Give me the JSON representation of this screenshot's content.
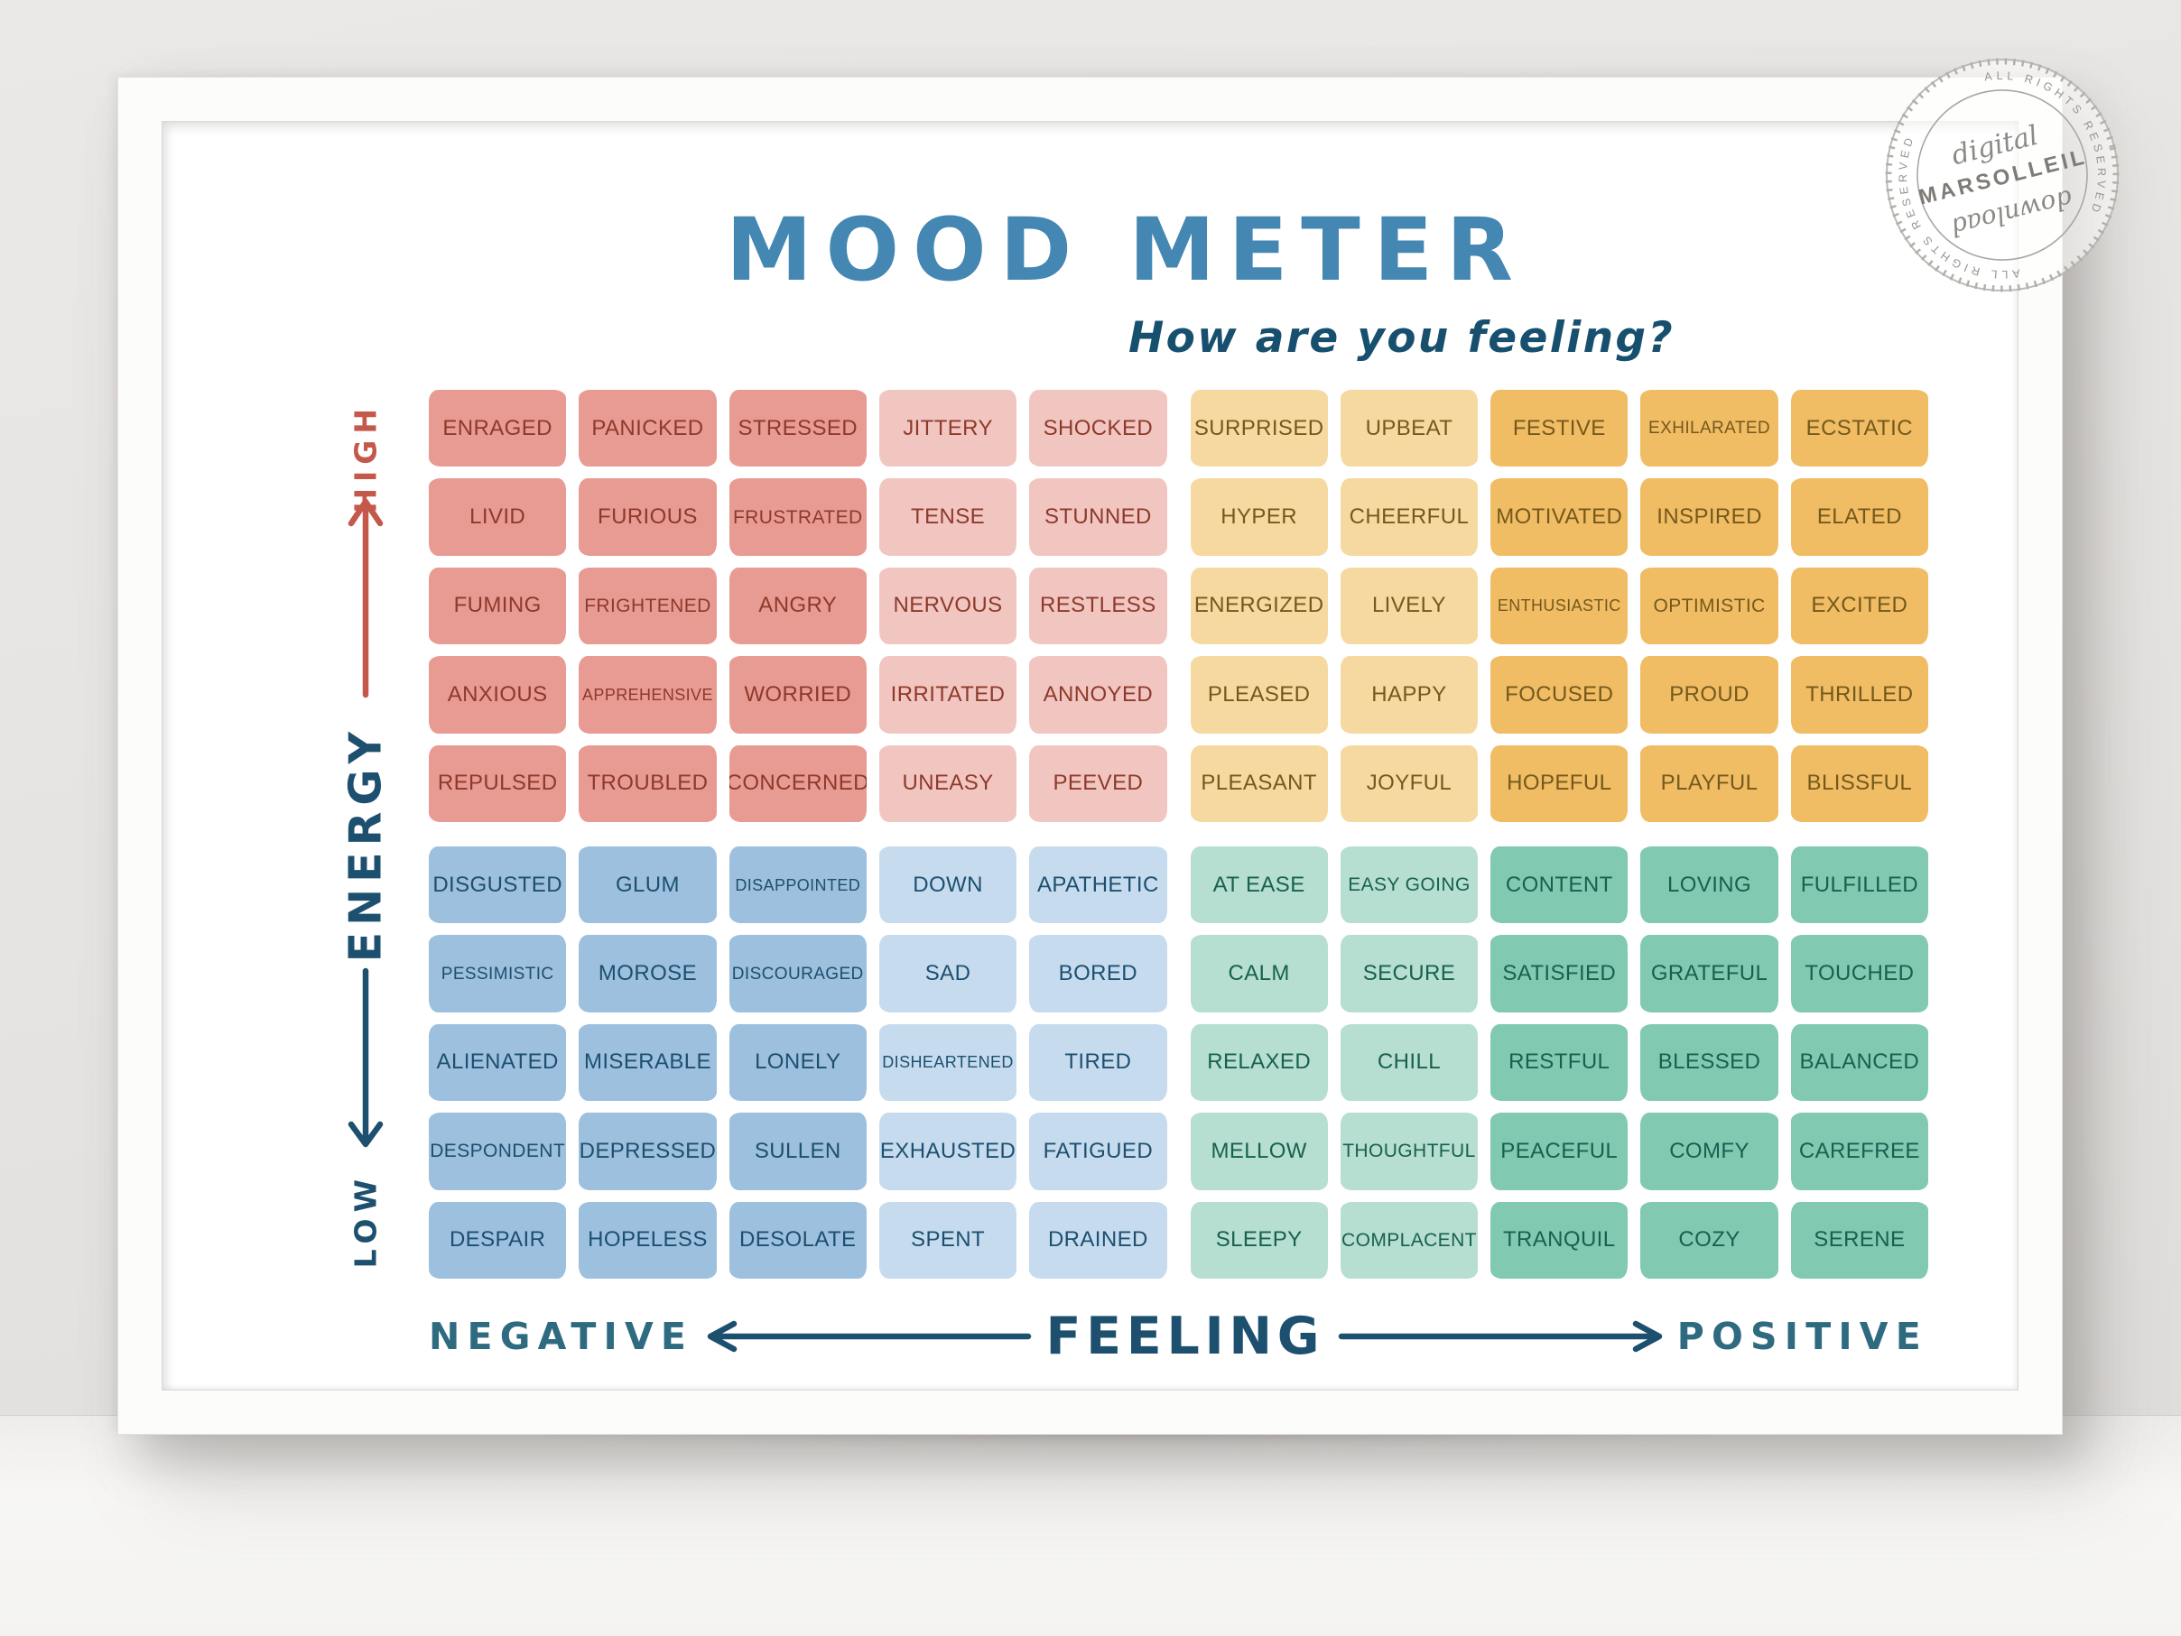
{
  "poster": {
    "title": "MOOD METER",
    "subtitle": "How are you feeling?",
    "axes": {
      "y_label": "ENERGY",
      "y_high": "HIGH",
      "y_low": "LOW",
      "x_label": "FEELING",
      "x_negative": "NEGATIVE",
      "x_positive": "POSITIVE"
    },
    "colors": {
      "title_blue": "#4587b3",
      "subtitle_navy": "#17506f",
      "axis_navy": "#1d506f",
      "axis_red": "#c4584a",
      "axis_teal": "#2e6b80"
    },
    "quadrants": [
      {
        "id": "high-energy-negative",
        "color_dark": "#e89b92",
        "color_light": "#f2c6c0",
        "text_color": "#8e392c",
        "shade_pattern": [
          "dark",
          "dark",
          "dark",
          "light",
          "light"
        ],
        "rows": [
          [
            "ENRAGED",
            "PANICKED",
            "STRESSED",
            "JITTERY",
            "SHOCKED"
          ],
          [
            "LIVID",
            "FURIOUS",
            "FRUSTRATED",
            "TENSE",
            "STUNNED"
          ],
          [
            "FUMING",
            "FRIGHTENED",
            "ANGRY",
            "NERVOUS",
            "RESTLESS"
          ],
          [
            "ANXIOUS",
            "APPREHENSIVE",
            "WORRIED",
            "IRRITATED",
            "ANNOYED"
          ],
          [
            "REPULSED",
            "TROUBLED",
            "CONCERNED",
            "UNEASY",
            "PEEVED"
          ]
        ]
      },
      {
        "id": "high-energy-positive",
        "color_dark": "#f0bc64",
        "color_light": "#f6d9a1",
        "text_color": "#75591c",
        "shade_pattern": [
          "light",
          "light",
          "dark",
          "dark",
          "dark"
        ],
        "rows": [
          [
            "SURPRISED",
            "UPBEAT",
            "FESTIVE",
            "EXHILARATED",
            "ECSTATIC"
          ],
          [
            "HYPER",
            "CHEERFUL",
            "MOTIVATED",
            "INSPIRED",
            "ELATED"
          ],
          [
            "ENERGIZED",
            "LIVELY",
            "ENTHUSIASTIC",
            "OPTIMISTIC",
            "EXCITED"
          ],
          [
            "PLEASED",
            "HAPPY",
            "FOCUSED",
            "PROUD",
            "THRILLED"
          ],
          [
            "PLEASANT",
            "JOYFUL",
            "HOPEFUL",
            "PLAYFUL",
            "BLISSFUL"
          ]
        ]
      },
      {
        "id": "low-energy-negative",
        "color_dark": "#9cc0de",
        "color_light": "#c6dcee",
        "text_color": "#1d4f70",
        "shade_pattern": [
          "dark",
          "dark",
          "dark",
          "light",
          "light"
        ],
        "rows": [
          [
            "DISGUSTED",
            "GLUM",
            "DISAPPOINTED",
            "DOWN",
            "APATHETIC"
          ],
          [
            "PESSIMISTIC",
            "MOROSE",
            "DISCOURAGED",
            "SAD",
            "BORED"
          ],
          [
            "ALIENATED",
            "MISERABLE",
            "LONELY",
            "DISHEARTENED",
            "TIRED"
          ],
          [
            "DESPONDENT",
            "DEPRESSED",
            "SULLEN",
            "EXHAUSTED",
            "FATIGUED"
          ],
          [
            "DESPAIR",
            "HOPELESS",
            "DESOLATE",
            "SPENT",
            "DRAINED"
          ]
        ]
      },
      {
        "id": "low-energy-positive",
        "color_dark": "#82c9b2",
        "color_light": "#b6ded1",
        "text_color": "#18614f",
        "shade_pattern": [
          "light",
          "light",
          "dark",
          "dark",
          "dark"
        ],
        "rows": [
          [
            "AT EASE",
            "EASY GOING",
            "CONTENT",
            "LOVING",
            "FULFILLED"
          ],
          [
            "CALM",
            "SECURE",
            "SATISFIED",
            "GRATEFUL",
            "TOUCHED"
          ],
          [
            "RELAXED",
            "CHILL",
            "RESTFUL",
            "BLESSED",
            "BALANCED"
          ],
          [
            "MELLOW",
            "THOUGHTFUL",
            "PEACEFUL",
            "COMFY",
            "CAREFREE"
          ],
          [
            "SLEEPY",
            "COMPLACENT",
            "TRANQUIL",
            "COZY",
            "SERENE"
          ]
        ]
      }
    ],
    "watermark": {
      "brand": "MARSOLLEIL",
      "word_top": "digital",
      "word_bottom": "download",
      "ring_text": "ALL RIGHTS RESERVED"
    }
  }
}
